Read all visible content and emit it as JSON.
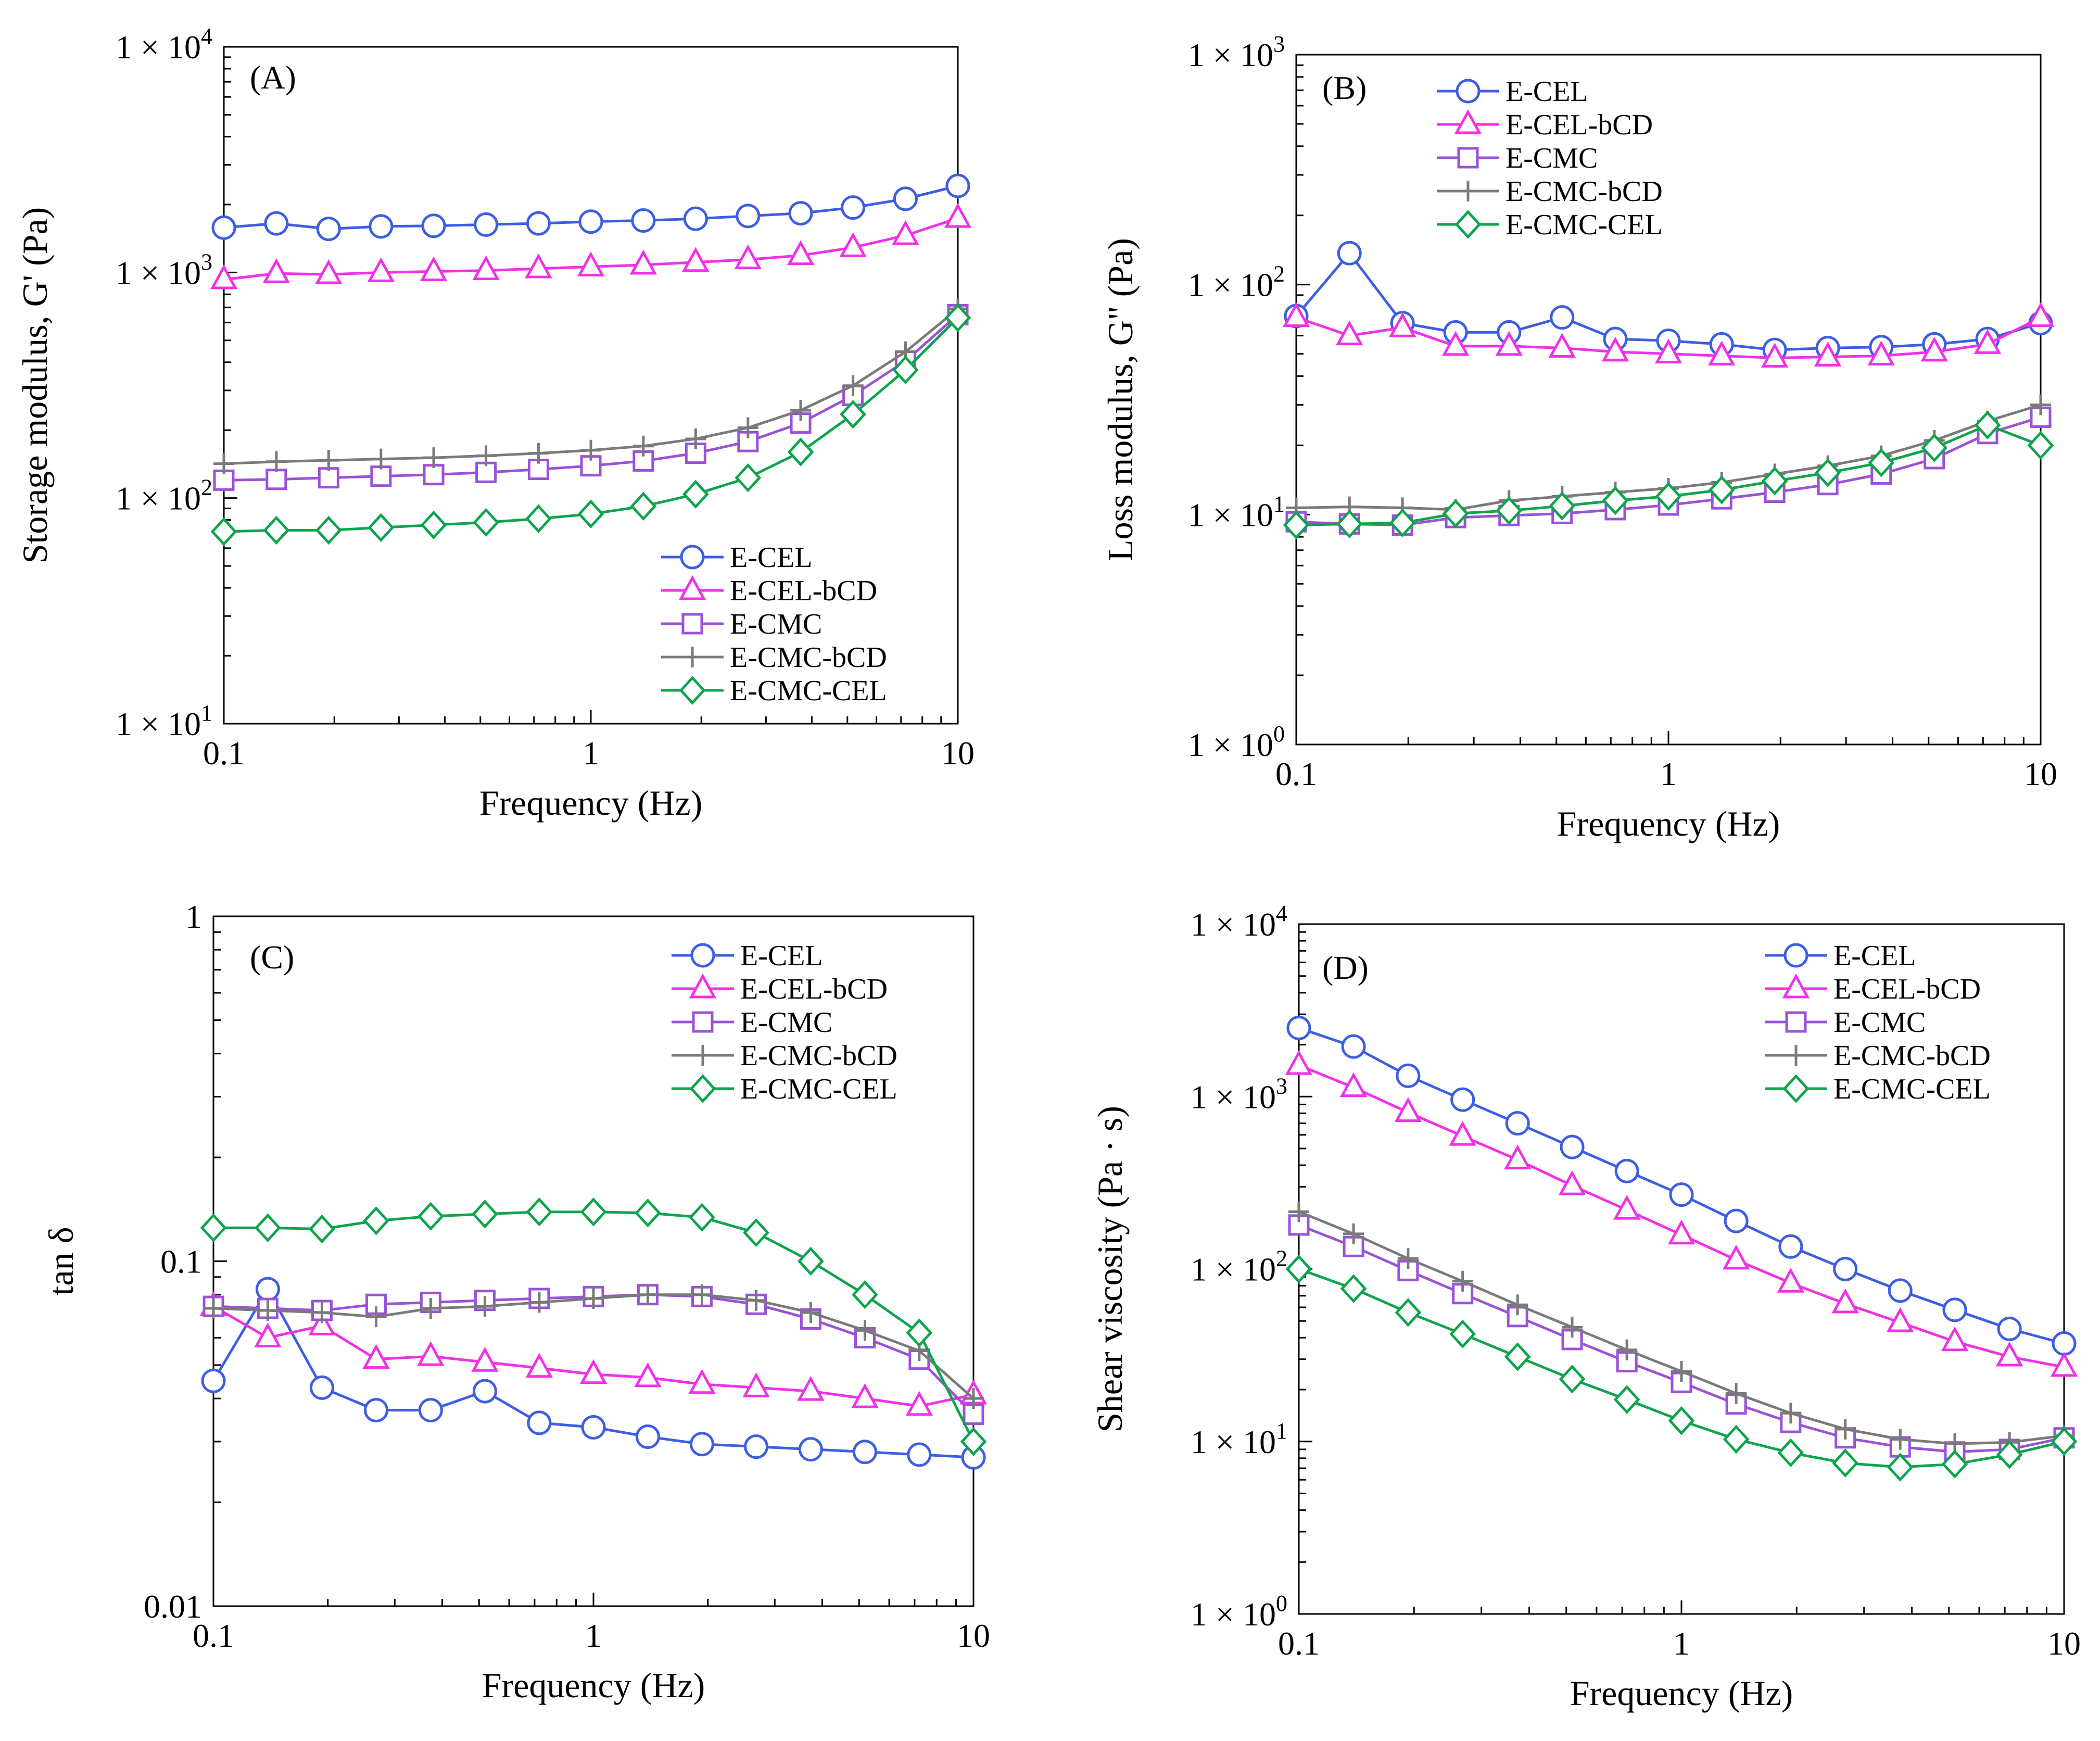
{
  "colors": {
    "E-CEL": "#3d5ee3",
    "E-CEL-bCD": "#f230e8",
    "E-CMC": "#9a52d8",
    "E-CMC-bCD": "#7a7a7a",
    "E-CMC-CEL": "#0ea44c"
  },
  "markers": {
    "E-CEL": "circle",
    "E-CEL-bCD": "triangle",
    "E-CMC": "square",
    "E-CMC-bCD": "plus",
    "E-CMC-CEL": "diamond"
  },
  "chart_data": [
    {
      "id": "A",
      "type": "line",
      "panel_label": "(A)",
      "xscale": "log",
      "yscale": "log",
      "xlim": [
        0.1,
        10
      ],
      "ylim": [
        10,
        10000
      ],
      "xlabel": "Frequency (Hz)",
      "ylabel": "Storage modulus, G' (Pa)",
      "xticks": [
        {
          "v": 0.1,
          "label": "0.1"
        },
        {
          "v": 1,
          "label": "1"
        },
        {
          "v": 10,
          "label": "10"
        }
      ],
      "yticks": [
        {
          "v": 10,
          "base": "1 × 10",
          "exp": "1"
        },
        {
          "v": 100,
          "base": "1 × 10",
          "exp": "2"
        },
        {
          "v": 1000,
          "base": "1 × 10",
          "exp": "3"
        },
        {
          "v": 10000,
          "base": "1 × 10",
          "exp": "4"
        }
      ],
      "legend_position": "lower-right",
      "x": [
        0.1,
        0.139,
        0.193,
        0.268,
        0.373,
        0.518,
        0.72,
        1.0,
        1.39,
        1.93,
        2.68,
        3.73,
        5.18,
        7.2,
        10
      ],
      "series": [
        {
          "name": "E-CEL",
          "values": [
            1580,
            1650,
            1560,
            1600,
            1610,
            1630,
            1650,
            1680,
            1700,
            1730,
            1780,
            1830,
            1940,
            2120,
            2420
          ]
        },
        {
          "name": "E-CEL-bCD",
          "values": [
            930,
            990,
            980,
            1000,
            1010,
            1020,
            1040,
            1060,
            1080,
            1110,
            1140,
            1190,
            1290,
            1460,
            1740
          ]
        },
        {
          "name": "E-CMC",
          "values": [
            120,
            121,
            123,
            125,
            127,
            130,
            134,
            139,
            146,
            158,
            178,
            215,
            285,
            405,
            650
          ]
        },
        {
          "name": "E-CMC-bCD",
          "values": [
            142,
            145,
            147,
            149,
            151,
            154,
            158,
            163,
            170,
            183,
            205,
            245,
            315,
            445,
            690
          ]
        },
        {
          "name": "E-CMC-CEL",
          "values": [
            71,
            72,
            72,
            74,
            76,
            78,
            81,
            85,
            92,
            104,
            123,
            160,
            235,
            370,
            630
          ]
        }
      ]
    },
    {
      "id": "B",
      "type": "line",
      "panel_label": "(B)",
      "xscale": "log",
      "yscale": "log",
      "xlim": [
        0.1,
        10
      ],
      "ylim": [
        1,
        1000
      ],
      "xlabel": "Frequency (Hz)",
      "ylabel": "Loss modulus, G\" (Pa)",
      "xticks": [
        {
          "v": 0.1,
          "label": "0.1"
        },
        {
          "v": 1,
          "label": "1"
        },
        {
          "v": 10,
          "label": "10"
        }
      ],
      "yticks": [
        {
          "v": 1,
          "base": "1 × 10",
          "exp": "0"
        },
        {
          "v": 10,
          "base": "1 × 10",
          "exp": "1"
        },
        {
          "v": 100,
          "base": "1 × 10",
          "exp": "2"
        },
        {
          "v": 1000,
          "base": "1 × 10",
          "exp": "3"
        }
      ],
      "legend_position": "top-left",
      "x": [
        0.1,
        0.139,
        0.193,
        0.268,
        0.373,
        0.518,
        0.72,
        1.0,
        1.39,
        1.93,
        2.68,
        3.73,
        5.18,
        7.2,
        10
      ],
      "series": [
        {
          "name": "E-CEL",
          "values": [
            73,
            137,
            68,
            62,
            62,
            72,
            58,
            57,
            55,
            52,
            53,
            53.5,
            55,
            58,
            68
          ]
        },
        {
          "name": "E-CEL-bCD",
          "values": [
            72,
            60,
            65,
            54,
            54,
            53,
            51,
            50,
            49,
            48,
            48.5,
            49,
            51,
            55,
            72
          ]
        },
        {
          "name": "E-CMC",
          "values": [
            9.3,
            9.1,
            9.0,
            9.7,
            9.9,
            10.1,
            10.5,
            11.0,
            11.7,
            12.5,
            13.5,
            15.0,
            17.5,
            22.5,
            26.5
          ]
        },
        {
          "name": "E-CMC-bCD",
          "values": [
            10.7,
            10.8,
            10.7,
            10.5,
            11.5,
            12.0,
            12.5,
            13.0,
            13.8,
            15.0,
            16.3,
            18.0,
            21.0,
            25.5,
            30.0
          ]
        },
        {
          "name": "E-CMC-CEL",
          "values": [
            9.0,
            9.1,
            9.2,
            10.1,
            10.4,
            10.9,
            11.5,
            12.0,
            12.8,
            14.0,
            15.2,
            16.8,
            19.5,
            24.5,
            20.0
          ]
        }
      ]
    },
    {
      "id": "C",
      "type": "line",
      "panel_label": "(C)",
      "xscale": "log",
      "yscale": "log",
      "xlim": [
        0.1,
        10
      ],
      "ylim": [
        0.01,
        1
      ],
      "xlabel": "Frequency (Hz)",
      "ylabel": "tan δ",
      "xticks": [
        {
          "v": 0.1,
          "label": "0.1"
        },
        {
          "v": 1,
          "label": "1"
        },
        {
          "v": 10,
          "label": "10"
        }
      ],
      "yticks": [
        {
          "v": 0.01,
          "label": "0.01"
        },
        {
          "v": 0.1,
          "label": "0.1"
        },
        {
          "v": 1,
          "label": "1"
        }
      ],
      "legend_position": "top-right",
      "x": [
        0.1,
        0.139,
        0.193,
        0.268,
        0.373,
        0.518,
        0.72,
        1.0,
        1.39,
        1.93,
        2.68,
        3.73,
        5.18,
        7.2,
        10
      ],
      "series": [
        {
          "name": "E-CEL",
          "values": [
            0.045,
            0.083,
            0.043,
            0.037,
            0.037,
            0.042,
            0.034,
            0.033,
            0.031,
            0.0295,
            0.029,
            0.0285,
            0.028,
            0.0275,
            0.027
          ]
        },
        {
          "name": "E-CEL-bCD",
          "values": [
            0.074,
            0.06,
            0.065,
            0.052,
            0.053,
            0.051,
            0.049,
            0.047,
            0.046,
            0.044,
            0.043,
            0.042,
            0.04,
            0.038,
            0.041
          ]
        },
        {
          "name": "E-CMC",
          "values": [
            0.074,
            0.073,
            0.072,
            0.075,
            0.076,
            0.077,
            0.078,
            0.079,
            0.08,
            0.079,
            0.075,
            0.068,
            0.06,
            0.052,
            0.036
          ]
        },
        {
          "name": "E-CMC-bCD",
          "values": [
            0.073,
            0.072,
            0.071,
            0.069,
            0.073,
            0.074,
            0.076,
            0.078,
            0.08,
            0.08,
            0.077,
            0.071,
            0.063,
            0.055,
            0.04
          ]
        },
        {
          "name": "E-CMC-CEL",
          "values": [
            0.125,
            0.125,
            0.124,
            0.131,
            0.135,
            0.137,
            0.139,
            0.139,
            0.138,
            0.134,
            0.121,
            0.1,
            0.08,
            0.062,
            0.03
          ]
        }
      ]
    },
    {
      "id": "D",
      "type": "line",
      "panel_label": "(D)",
      "xscale": "log",
      "yscale": "log",
      "xlim": [
        0.1,
        10
      ],
      "ylim": [
        1,
        10000
      ],
      "xlabel": "Frequency (Hz)",
      "ylabel": "Shear viscosity (Pa · s)",
      "xticks": [
        {
          "v": 0.1,
          "label": "0.1"
        },
        {
          "v": 1,
          "label": "1"
        },
        {
          "v": 10,
          "label": "10"
        }
      ],
      "yticks": [
        {
          "v": 1,
          "base": "1 × 10",
          "exp": "0"
        },
        {
          "v": 10,
          "base": "1 × 10",
          "exp": "1"
        },
        {
          "v": 100,
          "base": "1 × 10",
          "exp": "2"
        },
        {
          "v": 1000,
          "base": "1 × 10",
          "exp": "3"
        },
        {
          "v": 10000,
          "base": "1 × 10",
          "exp": "4"
        }
      ],
      "legend_position": "top-right",
      "x": [
        0.1,
        0.139,
        0.193,
        0.268,
        0.373,
        0.518,
        0.72,
        1.0,
        1.39,
        1.93,
        2.68,
        3.73,
        5.18,
        7.2,
        10
      ],
      "series": [
        {
          "name": "E-CEL",
          "values": [
            2500,
            1950,
            1320,
            960,
            700,
            510,
            370,
            270,
            190,
            135,
            100,
            75,
            58,
            45,
            37
          ]
        },
        {
          "name": "E-CEL-bCD",
          "values": [
            1520,
            1130,
            810,
            590,
            430,
            305,
            220,
            158,
            113,
            83,
            63,
            49,
            38,
            31,
            27
          ]
        },
        {
          "name": "E-CMC",
          "values": [
            180,
            135,
            98,
            72,
            53,
            39,
            29,
            22,
            16.5,
            12.9,
            10.5,
            9.3,
            8.7,
            9.0,
            10.5
          ]
        },
        {
          "name": "E-CMC-bCD",
          "values": [
            215,
            160,
            115,
            85,
            62,
            46,
            34,
            25.5,
            19,
            14.6,
            11.8,
            10.3,
            9.7,
            9.9,
            10.8
          ]
        },
        {
          "name": "E-CMC-CEL",
          "values": [
            100,
            77,
            56,
            42,
            31,
            23,
            17.5,
            13.2,
            10.3,
            8.6,
            7.5,
            7.1,
            7.4,
            8.4,
            10
          ]
        }
      ]
    }
  ]
}
